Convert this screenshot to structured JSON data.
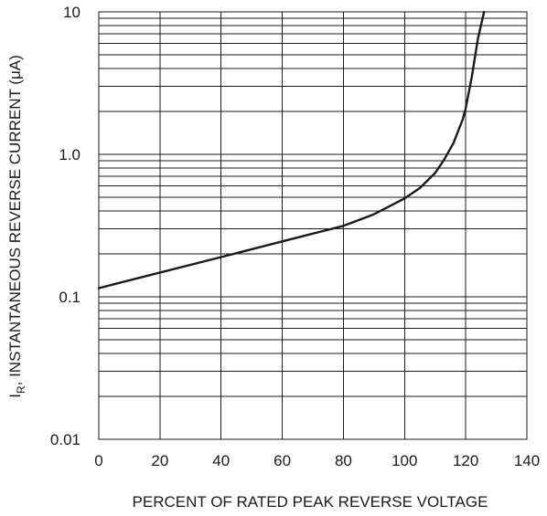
{
  "chart_data": {
    "type": "line",
    "xlabel": "PERCENT OF RATED PEAK REVERSE VOLTAGE",
    "ylabel": "I",
    "ylabel_subscript": "R",
    "ylabel_rest": ", INSTANTANEOUS REVERSE CURRENT (μA)",
    "xlim": [
      0,
      140
    ],
    "ylim": [
      0.01,
      10
    ],
    "yscale": "log",
    "grid": true,
    "x_ticks": [
      "0",
      "20",
      "40",
      "60",
      "80",
      "100",
      "120",
      "140"
    ],
    "y_ticks": [
      "0.01",
      "0.1",
      "1.0",
      "10"
    ],
    "series": [
      {
        "x": [
          0,
          20,
          40,
          60,
          80,
          90,
          100,
          105,
          110,
          113,
          116,
          118,
          119,
          120,
          122,
          124,
          126
        ],
        "y": [
          0.115,
          0.148,
          0.19,
          0.245,
          0.315,
          0.38,
          0.49,
          0.58,
          0.74,
          0.92,
          1.2,
          1.55,
          1.75,
          2.1,
          3.5,
          6.5,
          10
        ]
      }
    ]
  }
}
